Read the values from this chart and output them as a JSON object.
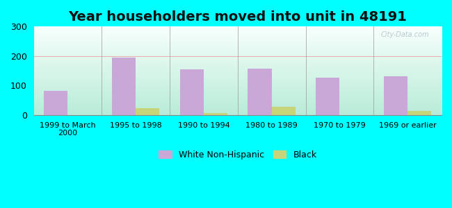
{
  "title": "Year householders moved into unit in 48191",
  "categories": [
    "1999 to March\n2000",
    "1995 to 1998",
    "1990 to 1994",
    "1980 to 1989",
    "1970 to 1979",
    "1969 or earlier"
  ],
  "white_values": [
    82,
    196,
    155,
    157,
    127,
    131
  ],
  "black_values": [
    0,
    24,
    7,
    28,
    0,
    15
  ],
  "white_color": "#c9a8d8",
  "black_color": "#c8d47a",
  "ylim": [
    0,
    300
  ],
  "yticks": [
    0,
    100,
    200,
    300
  ],
  "background_outer": "#00ffff",
  "bg_bottom_left": "#b8ecd8",
  "bg_top_right": "#f8fffc",
  "title_fontsize": 14,
  "bar_width": 0.35,
  "legend_white": "White Non-Hispanic",
  "legend_black": "Black",
  "watermark": "City-Data.com"
}
